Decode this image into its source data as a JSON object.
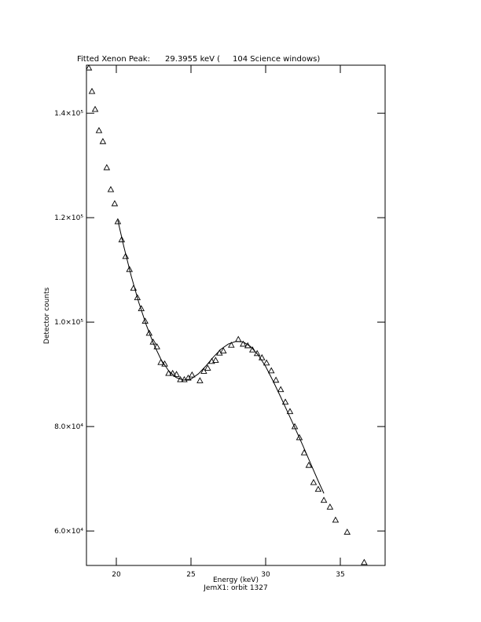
{
  "chart_data": {
    "type": "scatter",
    "title": "Fitted Xenon Peak:      29.3955 keV (     104 Science windows)",
    "x_label": "Energy (keV)",
    "y_label": "Detector counts",
    "subtitle": "JemX1: orbit 1327",
    "xlim": [
      18,
      38
    ],
    "ylim": [
      53400,
      149200
    ],
    "xticks": [
      20,
      25,
      30,
      35
    ],
    "yticks": [
      {
        "value": 60000,
        "label": "6.0×10⁴"
      },
      {
        "value": 80000,
        "label": "8.0×10⁴"
      },
      {
        "value": 100000,
        "label": "1.0×10⁵"
      },
      {
        "value": 120000,
        "label": "1.2×10⁵"
      },
      {
        "value": 140000,
        "label": "1.4×10⁵"
      }
    ],
    "color": "#000000",
    "series": [
      {
        "marker": "triangle",
        "x": [
          18.16,
          18.37,
          18.58,
          18.84,
          19.1,
          19.36,
          19.63,
          19.89,
          20.1,
          20.36,
          20.62,
          20.88,
          21.15,
          21.41,
          21.67,
          21.93,
          22.2,
          22.46,
          22.72,
          22.98,
          23.24,
          23.5,
          23.77,
          24.03,
          24.29,
          24.55,
          24.81,
          25.07,
          25.6,
          25.86,
          26.12,
          26.39,
          26.65,
          26.91,
          27.17,
          27.7,
          28.17,
          28.49,
          28.8,
          29.12,
          29.43,
          29.75,
          30.06,
          30.38,
          30.69,
          31.01,
          31.32,
          31.63,
          31.95,
          32.26,
          32.58,
          32.89,
          33.21,
          33.52,
          33.9,
          34.31,
          34.68,
          35.46,
          36.6
        ],
        "values": [
          148700,
          144200,
          140750,
          136700,
          134600,
          129600,
          125400,
          122700,
          119250,
          115800,
          112600,
          110100,
          106500,
          104700,
          102600,
          100200,
          97900,
          96200,
          95300,
          92300,
          92000,
          90200,
          90200,
          90000,
          89000,
          89000,
          89300,
          89900,
          88800,
          90600,
          91200,
          92500,
          92700,
          94100,
          94500,
          95600,
          96700,
          95800,
          95500,
          94700,
          94000,
          93200,
          92200,
          90700,
          88900,
          87100,
          84700,
          82900,
          80000,
          77900,
          75000,
          72600,
          69300,
          68000,
          65900,
          64600,
          62100,
          59800,
          54000
        ]
      },
      {
        "marker": "line",
        "x": [
          20.1,
          20.5,
          21,
          21.5,
          22,
          22.5,
          23,
          23.5,
          24,
          24.5,
          25,
          25.5,
          26,
          26.5,
          27,
          27.5,
          28,
          28.5,
          29,
          29.5,
          30,
          30.5,
          31,
          31.5,
          32,
          32.5,
          33,
          33.5,
          33.9
        ],
        "values": [
          119500,
          114500,
          108800,
          103800,
          99500,
          95800,
          92800,
          90700,
          89400,
          88900,
          89100,
          90100,
          91600,
          93300,
          94800,
          95800,
          96300,
          96200,
          95300,
          93700,
          91500,
          88700,
          85700,
          82600,
          79500,
          76300,
          73000,
          69700,
          67200
        ]
      }
    ]
  }
}
